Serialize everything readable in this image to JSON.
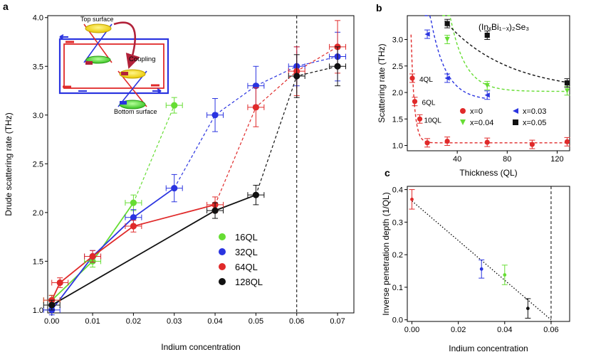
{
  "chart_data": [
    {
      "panel": "a",
      "type": "scatter",
      "xlabel": "Indium concentration",
      "ylabel": "Drude scattering rate (THz)",
      "xlim": [
        -0.001,
        0.074
      ],
      "ylim": [
        0.97,
        4.02
      ],
      "xticks": [
        "0.00",
        "0.01",
        "0.02",
        "0.03",
        "0.04",
        "0.05",
        "0.06",
        "0.07"
      ],
      "yticks": [
        "1.0",
        "1.5",
        "2.0",
        "2.5",
        "3.0",
        "3.5",
        "4.0"
      ],
      "vline_x": 0.06,
      "legend": [
        "16QL",
        "32QL",
        "64QL",
        "128QL"
      ],
      "series": [
        {
          "name": "16QL",
          "color": "#66dd33",
          "x": [
            0.0,
            0.01,
            0.02,
            0.03
          ],
          "y": [
            1.1,
            1.5,
            2.1,
            3.1
          ],
          "xerr": [
            0.002,
            0.002,
            0.002,
            0.002
          ],
          "yerr": [
            0.05,
            0.06,
            0.08,
            0.08
          ],
          "solid_until": 3
        },
        {
          "name": "32QL",
          "color": "#2a34e0",
          "x": [
            0.0,
            0.01,
            0.02,
            0.03,
            0.04,
            0.05,
            0.06,
            0.07
          ],
          "y": [
            1.0,
            1.55,
            1.95,
            2.25,
            3.0,
            3.3,
            3.5,
            3.6
          ],
          "xerr": [
            0.002,
            0.002,
            0.002,
            0.002,
            0.002,
            0.002,
            0.002,
            0.002
          ],
          "yerr": [
            0.05,
            0.06,
            0.08,
            0.14,
            0.17,
            0.2,
            0.2,
            0.25
          ],
          "solid_until": 4
        },
        {
          "name": "64QL",
          "color": "#e02a2a",
          "x": [
            0.0,
            0.002,
            0.01,
            0.02,
            0.04,
            0.05,
            0.06,
            0.07
          ],
          "y": [
            1.1,
            1.28,
            1.55,
            1.86,
            2.08,
            3.08,
            3.45,
            3.7
          ],
          "xerr": [
            0.002,
            0.002,
            0.002,
            0.002,
            0.002,
            0.002,
            0.002,
            0.002
          ],
          "yerr": [
            0.05,
            0.05,
            0.06,
            0.06,
            0.08,
            0.2,
            0.25,
            0.27
          ],
          "solid_until": 5
        },
        {
          "name": "128QL",
          "color": "#111111",
          "x": [
            0.0,
            0.04,
            0.05,
            0.06,
            0.07
          ],
          "y": [
            1.05,
            2.02,
            2.18,
            3.4,
            3.5
          ],
          "xerr": [
            0.002,
            0.002,
            0.002,
            0.002,
            0.002
          ],
          "yerr": [
            0.05,
            0.08,
            0.1,
            0.22,
            0.2
          ],
          "solid_until": 3
        }
      ],
      "inset_labels": [
        "Top surface",
        "Coupling",
        "Bottom surface"
      ]
    },
    {
      "panel": "b",
      "type": "scatter",
      "title": "(InₓBi₁₋ₓ)₂Se₃",
      "xlabel": "Thickness (QL)",
      "ylabel": "Scattering rate (THz)",
      "xlim": [
        0,
        130
      ],
      "ylim": [
        0.9,
        3.45
      ],
      "xticks": [
        "40",
        "80",
        "120"
      ],
      "yticks": [
        "1.0",
        "1.5",
        "2.0",
        "2.5",
        "3.0"
      ],
      "legend": [
        "x=0",
        "x=0.03",
        "x=0.04",
        "x=0.05"
      ],
      "annotations": [
        "4QL",
        "6QL",
        "10QL"
      ],
      "series": [
        {
          "name": "x=0",
          "color": "#e02a2a",
          "marker": "circle",
          "x": [
            4,
            6,
            10,
            16,
            32,
            64,
            100,
            128
          ],
          "y": [
            2.27,
            1.83,
            1.5,
            1.05,
            1.08,
            1.06,
            1.02,
            1.07
          ]
        },
        {
          "name": "x=0.03",
          "color": "#2a34e0",
          "marker": "triangle-left",
          "x": [
            16,
            32,
            64
          ],
          "y": [
            3.1,
            2.27,
            1.95
          ]
        },
        {
          "name": "x=0.04",
          "color": "#66dd33",
          "marker": "triangle-down",
          "x": [
            32,
            64,
            128
          ],
          "y": [
            3.0,
            2.13,
            2.03
          ]
        },
        {
          "name": "x=0.05",
          "color": "#111111",
          "marker": "square",
          "x": [
            32,
            64,
            128
          ],
          "y": [
            3.3,
            3.08,
            2.18
          ]
        }
      ]
    },
    {
      "panel": "c",
      "type": "scatter",
      "xlabel": "Indium concentration",
      "ylabel": "Inverse penetration depth (1/QL)",
      "xlim": [
        -0.002,
        0.068
      ],
      "ylim": [
        -0.005,
        0.41
      ],
      "xticks": [
        "0.00",
        "0.02",
        "0.04",
        "0.06"
      ],
      "yticks": [
        "0.0",
        "0.1",
        "0.2",
        "0.3",
        "0.4"
      ],
      "vline_x": 0.06,
      "fit_line": {
        "x": [
          0.0,
          0.06
        ],
        "y": [
          0.365,
          0.0
        ]
      },
      "points": [
        {
          "x": 0.0,
          "y": 0.37,
          "err": 0.03,
          "color": "#e02a2a"
        },
        {
          "x": 0.03,
          "y": 0.156,
          "err": 0.028,
          "color": "#2a34e0"
        },
        {
          "x": 0.04,
          "y": 0.138,
          "err": 0.03,
          "color": "#66dd33"
        },
        {
          "x": 0.05,
          "y": 0.035,
          "err": 0.03,
          "color": "#111111"
        }
      ]
    }
  ]
}
